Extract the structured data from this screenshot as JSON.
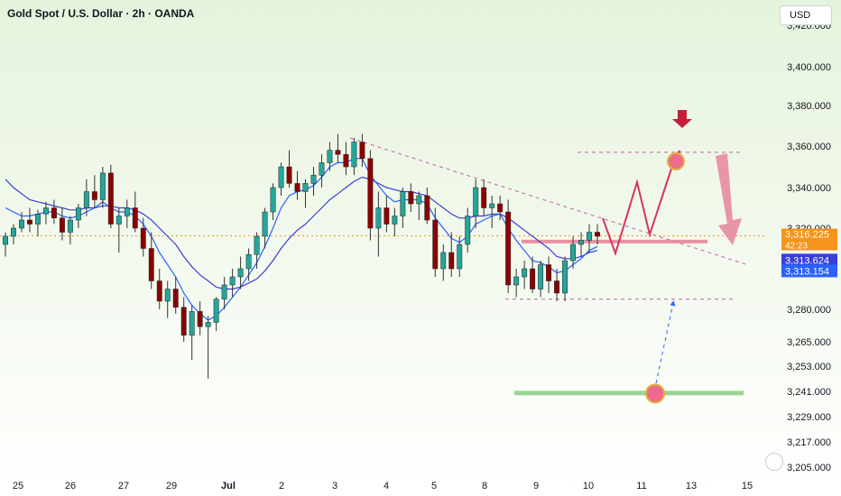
{
  "header": {
    "title": "Gold Spot / U.S. Dollar · 2h · OANDA",
    "currency": "USD"
  },
  "chart_data": {
    "type": "line",
    "title": "Gold Spot / U.S. Dollar · 2h · OANDA",
    "xlabel": "",
    "ylabel": "",
    "ylim": [
      3205,
      3420
    ],
    "y_tick_labels": [
      "3,420.000",
      "3,400.000",
      "3,380.000",
      "3,360.000",
      "3,340.000",
      "3,320.000",
      "3,280.000",
      "3,265.000",
      "3,253.000",
      "3,241.000",
      "3,229.000",
      "3,217.000",
      "3,205.000"
    ],
    "y_ticks": [
      3420,
      3400,
      3380,
      3360,
      3340,
      3320,
      3280,
      3265,
      3253,
      3241,
      3229,
      3217,
      3205
    ],
    "x_tick_labels": [
      "25",
      "26",
      "27",
      "29",
      "Jul",
      "2",
      "3",
      "4",
      "5",
      "8",
      "9",
      "10",
      "11",
      "13",
      "15"
    ],
    "price_labels": [
      {
        "value": "3,316.225",
        "sub": "42:23",
        "color": "#f7931a",
        "price": 3316.225
      },
      {
        "value": "3,313.624",
        "sub": "",
        "color": "#3a3fd6",
        "price": 3313.624
      },
      {
        "value": "3,313.154",
        "sub": "",
        "color": "#2962ff",
        "price": 3313.154
      }
    ],
    "current_price": 3316.225,
    "candles": [
      [
        3312,
        3318,
        3306,
        3316
      ],
      [
        3316,
        3322,
        3312,
        3320
      ],
      [
        3320,
        3328,
        3318,
        3324
      ],
      [
        3324,
        3330,
        3318,
        3322
      ],
      [
        3322,
        3329,
        3316,
        3327
      ],
      [
        3327,
        3333,
        3322,
        3330
      ],
      [
        3330,
        3334,
        3322,
        3325
      ],
      [
        3325,
        3330,
        3314,
        3318
      ],
      [
        3318,
        3326,
        3312,
        3324
      ],
      [
        3324,
        3332,
        3320,
        3330
      ],
      [
        3330,
        3344,
        3326,
        3338
      ],
      [
        3338,
        3346,
        3330,
        3334
      ],
      [
        3334,
        3350,
        3330,
        3347
      ],
      [
        3347,
        3351,
        3320,
        3322
      ],
      [
        3322,
        3330,
        3308,
        3326
      ],
      [
        3326,
        3334,
        3320,
        3330
      ],
      [
        3330,
        3338,
        3318,
        3320
      ],
      [
        3320,
        3325,
        3306,
        3310
      ],
      [
        3310,
        3318,
        3290,
        3294
      ],
      [
        3294,
        3300,
        3280,
        3284
      ],
      [
        3284,
        3294,
        3276,
        3290
      ],
      [
        3290,
        3296,
        3278,
        3281
      ],
      [
        3281,
        3286,
        3265,
        3268
      ],
      [
        3268,
        3282,
        3256,
        3279
      ],
      [
        3279,
        3284,
        3268,
        3272
      ],
      [
        3272,
        3277,
        3247,
        3274
      ],
      [
        3274,
        3286,
        3270,
        3285
      ],
      [
        3285,
        3296,
        3280,
        3292
      ],
      [
        3292,
        3300,
        3286,
        3296
      ],
      [
        3296,
        3306,
        3290,
        3300
      ],
      [
        3300,
        3310,
        3294,
        3307
      ],
      [
        3307,
        3318,
        3300,
        3316
      ],
      [
        3316,
        3330,
        3310,
        3328
      ],
      [
        3328,
        3342,
        3324,
        3340
      ],
      [
        3340,
        3352,
        3336,
        3350
      ],
      [
        3350,
        3358,
        3340,
        3342
      ],
      [
        3342,
        3348,
        3334,
        3338
      ],
      [
        3338,
        3344,
        3330,
        3342
      ],
      [
        3342,
        3350,
        3336,
        3346
      ],
      [
        3346,
        3356,
        3340,
        3352
      ],
      [
        3352,
        3362,
        3348,
        3358
      ],
      [
        3358,
        3366,
        3352,
        3356
      ],
      [
        3356,
        3362,
        3346,
        3350
      ],
      [
        3350,
        3364,
        3346,
        3362
      ],
      [
        3362,
        3366,
        3350,
        3354
      ],
      [
        3354,
        3358,
        3314,
        3320
      ],
      [
        3320,
        3338,
        3306,
        3330
      ],
      [
        3330,
        3336,
        3318,
        3322
      ],
      [
        3322,
        3330,
        3316,
        3326
      ],
      [
        3326,
        3340,
        3320,
        3338
      ],
      [
        3338,
        3342,
        3328,
        3332
      ],
      [
        3332,
        3338,
        3324,
        3336
      ],
      [
        3336,
        3340,
        3322,
        3324
      ],
      [
        3324,
        3330,
        3296,
        3300
      ],
      [
        3300,
        3312,
        3294,
        3308
      ],
      [
        3308,
        3318,
        3296,
        3300
      ],
      [
        3300,
        3316,
        3296,
        3312
      ],
      [
        3312,
        3330,
        3308,
        3326
      ],
      [
        3326,
        3344,
        3320,
        3340
      ],
      [
        3340,
        3344,
        3326,
        3330
      ],
      [
        3330,
        3336,
        3320,
        3332
      ],
      [
        3332,
        3336,
        3324,
        3328
      ],
      [
        3328,
        3334,
        3288,
        3292
      ],
      [
        3292,
        3300,
        3286,
        3296
      ],
      [
        3296,
        3304,
        3290,
        3300
      ],
      [
        3300,
        3306,
        3288,
        3290
      ],
      [
        3290,
        3304,
        3286,
        3302
      ],
      [
        3302,
        3306,
        3288,
        3294
      ],
      [
        3294,
        3300,
        3284,
        3288
      ],
      [
        3288,
        3306,
        3284,
        3304
      ],
      [
        3304,
        3316,
        3300,
        3312
      ],
      [
        3312,
        3318,
        3306,
        3314
      ],
      [
        3314,
        3322,
        3308,
        3318
      ],
      [
        3318,
        3322,
        3312,
        3316
      ]
    ],
    "ema_fast": [
      3330,
      3328,
      3326,
      3326,
      3327,
      3328,
      3328,
      3326,
      3325,
      3326,
      3328,
      3330,
      3333,
      3330,
      3328,
      3328,
      3326,
      3322,
      3316,
      3308,
      3302,
      3296,
      3288,
      3282,
      3278,
      3275,
      3277,
      3281,
      3286,
      3291,
      3297,
      3303,
      3311,
      3320,
      3330,
      3336,
      3338,
      3339,
      3341,
      3345,
      3350,
      3352,
      3352,
      3354,
      3354,
      3346,
      3341,
      3336,
      3333,
      3334,
      3334,
      3334,
      3332,
      3325,
      3320,
      3315,
      3313,
      3316,
      3322,
      3324,
      3326,
      3327,
      3320,
      3314,
      3309,
      3304,
      3303,
      3301,
      3298,
      3299,
      3302,
      3305,
      3309,
      3311
    ],
    "ema_slow": [
      3344,
      3340,
      3337,
      3334,
      3333,
      3332,
      3331,
      3330,
      3329,
      3329,
      3330,
      3330,
      3331,
      3331,
      3330,
      3330,
      3329,
      3327,
      3324,
      3320,
      3316,
      3312,
      3306,
      3301,
      3297,
      3294,
      3291,
      3290,
      3290,
      3291,
      3293,
      3295,
      3299,
      3304,
      3310,
      3315,
      3319,
      3322,
      3326,
      3330,
      3334,
      3337,
      3340,
      3343,
      3345,
      3344,
      3342,
      3340,
      3339,
      3338,
      3338,
      3337,
      3336,
      3333,
      3330,
      3327,
      3325,
      3325,
      3326,
      3326,
      3327,
      3327,
      3325,
      3322,
      3319,
      3316,
      3313,
      3310,
      3306,
      3305,
      3305,
      3306,
      3308,
      3309
    ],
    "annotations": {
      "resistance_line_price": 3357,
      "support_upper_price": 3313.4,
      "support_lower_price": 3285,
      "target_price": 3240,
      "trendline_start_price": 3364,
      "trendline_end_price": 3302,
      "arrow_down": "red",
      "trend_color": "#d6335f"
    },
    "grid": false,
    "up_color": "#26a69a",
    "down_color": "#8b0000",
    "background_gradient": [
      "#e6f3dc",
      "#ffffff"
    ]
  }
}
